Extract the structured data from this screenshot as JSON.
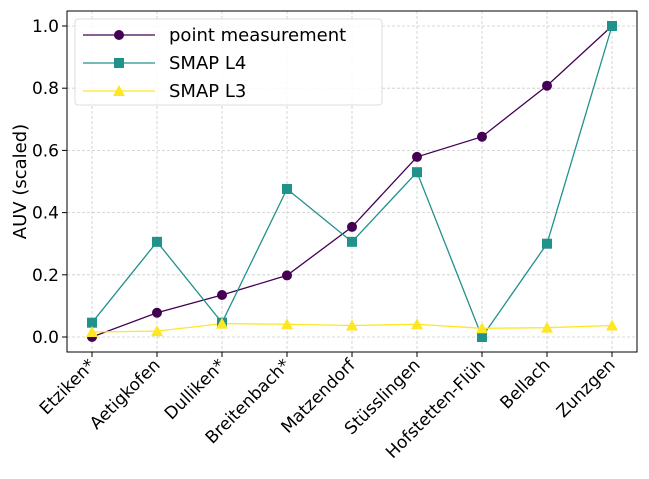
{
  "chart_data": {
    "type": "line",
    "title": "",
    "xlabel": "",
    "ylabel": "AUV (scaled)",
    "ylim": [
      -0.05,
      1.05
    ],
    "yticks": [
      "0.0",
      "0.2",
      "0.4",
      "0.6",
      "0.8",
      "1.0"
    ],
    "ytick_values": [
      0,
      0.2,
      0.4,
      0.6,
      0.8,
      1.0
    ],
    "grid": true,
    "legend_position": "top-left",
    "categories": [
      "Etziken*",
      "Aetigkofen",
      "Dulliken*",
      "Breitenbach*",
      "Matzendorf",
      "Stüsslingen",
      "Hofstetten-Flüh",
      "Bellach",
      "Zunzgen"
    ],
    "series": [
      {
        "name": "point measurement",
        "color": "#440154",
        "marker": "circle",
        "values": [
          0.0,
          0.078,
          0.135,
          0.198,
          0.354,
          0.579,
          0.644,
          0.808,
          1.0
        ]
      },
      {
        "name": "SMAP L4",
        "color": "#21918c",
        "marker": "square",
        "values": [
          0.046,
          0.306,
          0.046,
          0.476,
          0.306,
          0.53,
          0.0,
          0.3,
          1.0
        ]
      },
      {
        "name": "SMAP L3",
        "color": "#fde725",
        "marker": "triangle",
        "values": [
          0.016,
          0.019,
          0.043,
          0.041,
          0.037,
          0.041,
          0.028,
          0.03,
          0.037
        ]
      }
    ]
  }
}
